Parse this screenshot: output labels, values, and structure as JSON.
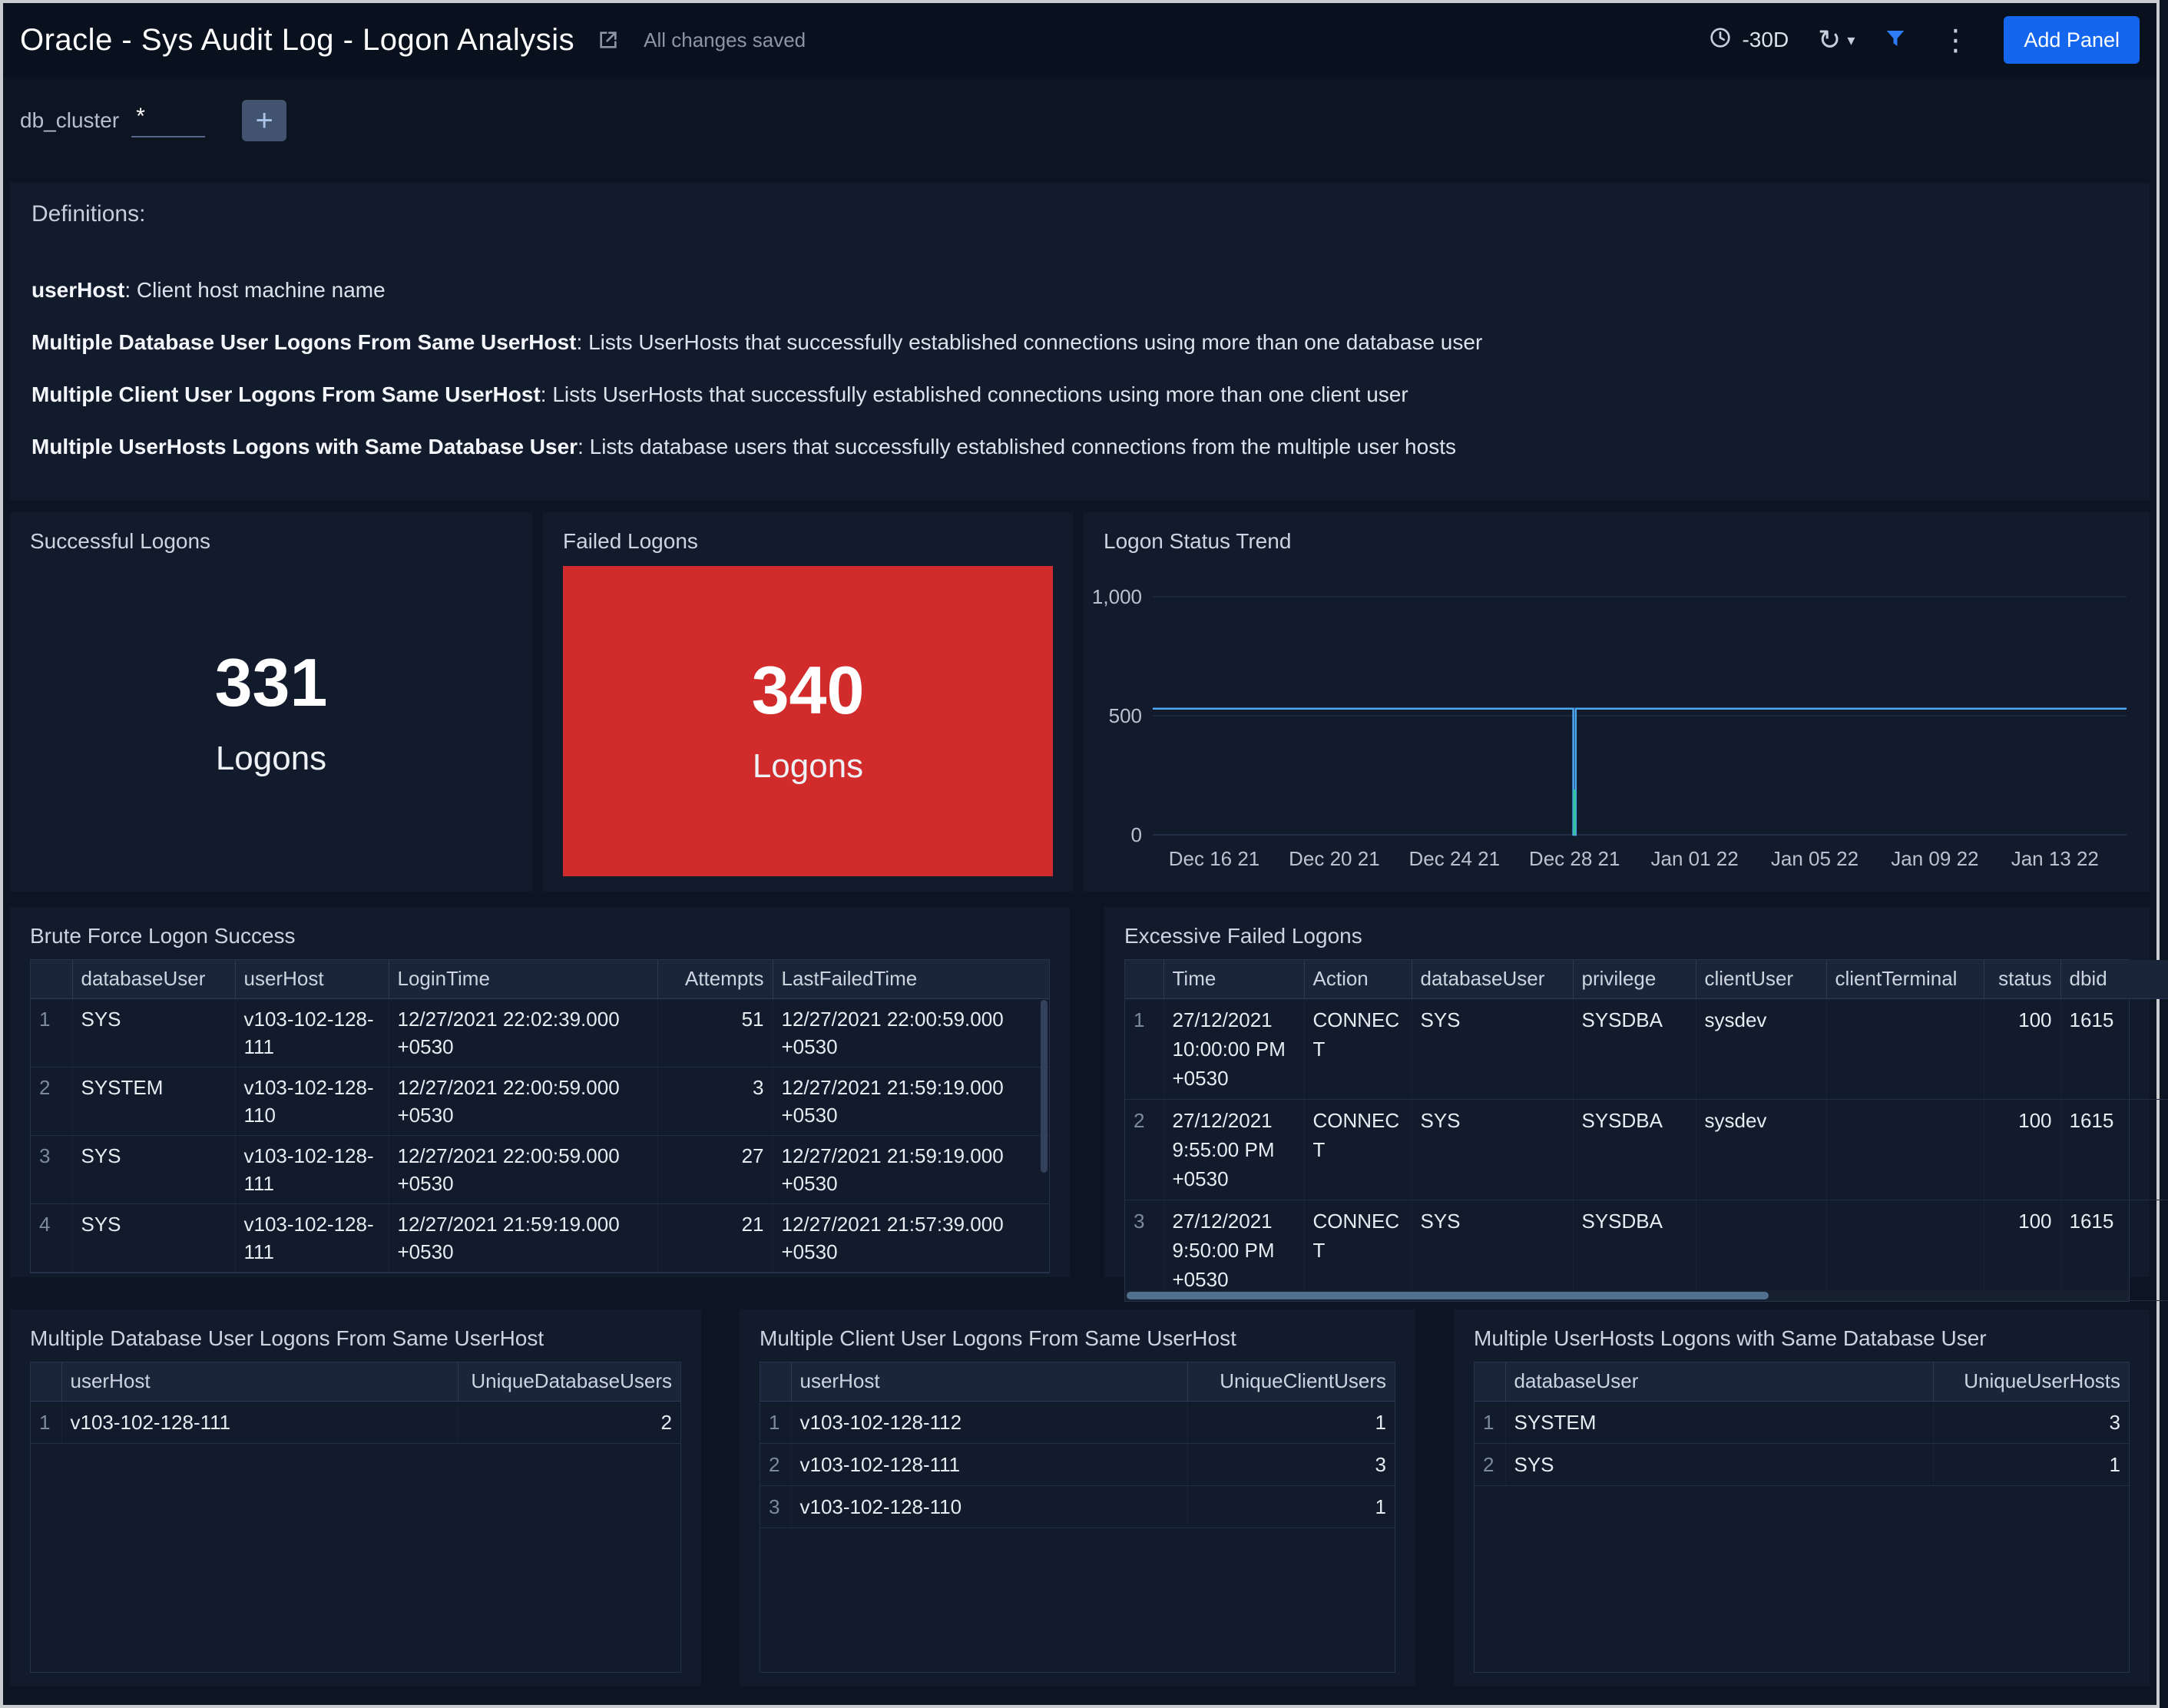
{
  "header": {
    "title": "Oracle - Sys Audit Log - Logon Analysis",
    "saved_status": "All changes saved",
    "time_range": "-30D",
    "add_panel_label": "Add Panel"
  },
  "icons": {
    "refresh": "↻",
    "caret": "▾",
    "kebab": "⋮",
    "plus": "+"
  },
  "filter": {
    "label": "db_cluster",
    "value": "*"
  },
  "definitions": {
    "title": "Definitions:",
    "items": [
      {
        "term": "userHost",
        "desc": ": Client host machine name"
      },
      {
        "term": "Multiple Database User Logons From Same UserHost",
        "desc": ": Lists UserHosts that successfully established connections using more than one database user"
      },
      {
        "term": "Multiple Client User Logons From Same UserHost",
        "desc": ": Lists UserHosts that successfully established connections using more than one client user"
      },
      {
        "term": "Multiple UserHosts Logons with Same Database User",
        "desc": ": Lists database users that successfully established connections from the multiple user hosts"
      }
    ]
  },
  "stats": {
    "successful": {
      "title": "Successful Logons",
      "value": "331",
      "unit": "Logons"
    },
    "failed": {
      "title": "Failed Logons",
      "value": "340",
      "unit": "Logons"
    }
  },
  "chart_data": {
    "type": "line",
    "title": "Logon Status Trend",
    "x_labels": [
      "Dec 16 21",
      "Dec 20 21",
      "Dec 24 21",
      "Dec 28 21",
      "Jan 01 22",
      "Jan 05 22",
      "Jan 09 22",
      "Jan 13 22"
    ],
    "ylim": [
      0,
      1000
    ],
    "yticks": [
      0,
      500,
      1000
    ],
    "ytick_labels": [
      "0",
      "500",
      "1,000"
    ],
    "grid": "horizontal",
    "legend": "none",
    "series": [
      {
        "name": "Failed Logons",
        "color": "#4da7f3",
        "width": 2.5,
        "points": [
          [
            -0.6,
            530
          ],
          [
            2.99,
            530
          ],
          [
            2.99,
            0
          ],
          [
            3.01,
            0
          ],
          [
            3.01,
            530
          ],
          [
            7.6,
            530
          ]
        ]
      },
      {
        "name": "Successful Logons",
        "color": "#2fc492",
        "width": 3,
        "points": [
          [
            3,
            190
          ],
          [
            3,
            0
          ]
        ]
      }
    ]
  },
  "tables": {
    "brute_force": {
      "title": "Brute Force Logon Success",
      "columns": [
        "",
        "databaseUser",
        "userHost",
        "LoginTime",
        "Attempts",
        "LastFailedTime"
      ],
      "rows": [
        [
          "1",
          "SYS",
          "v103-102-128-111",
          "12/27/2021 22:02:39.000 +0530",
          "51",
          "12/27/2021 22:00:59.000 +0530"
        ],
        [
          "2",
          "SYSTEM",
          "v103-102-128-110",
          "12/27/2021 22:00:59.000 +0530",
          "3",
          "12/27/2021 21:59:19.000 +0530"
        ],
        [
          "3",
          "SYS",
          "v103-102-128-111",
          "12/27/2021 22:00:59.000 +0530",
          "27",
          "12/27/2021 21:59:19.000 +0530"
        ],
        [
          "4",
          "SYS",
          "v103-102-128-111",
          "12/27/2021 21:59:19.000 +0530",
          "21",
          "12/27/2021 21:57:39.000 +0530"
        ]
      ]
    },
    "excessive_failed": {
      "title": "Excessive Failed Logons",
      "columns": [
        "",
        "Time",
        "Action",
        "databaseUser",
        "privilege",
        "clientUser",
        "clientTerminal",
        "status",
        "dbid"
      ],
      "rows": [
        [
          "1",
          "27/12/2021 10:00:00 PM +0530",
          "CONNECT",
          "SYS",
          "SYSDBA",
          "sysdev",
          "",
          "100",
          "1615"
        ],
        [
          "2",
          "27/12/2021 9:55:00 PM +0530",
          "CONNECT",
          "SYS",
          "SYSDBA",
          "sysdev",
          "",
          "100",
          "1615"
        ],
        [
          "3",
          "27/12/2021 9:50:00 PM +0530",
          "CONNECT",
          "SYS",
          "SYSDBA",
          "",
          "",
          "100",
          "1615"
        ]
      ]
    },
    "multi_db_user": {
      "title": "Multiple Database User Logons From Same UserHost",
      "columns": [
        "",
        "userHost",
        "UniqueDatabaseUsers"
      ],
      "rows": [
        [
          "1",
          "v103-102-128-111",
          "2"
        ]
      ]
    },
    "multi_client_user": {
      "title": "Multiple Client User Logons From Same UserHost",
      "columns": [
        "",
        "userHost",
        "UniqueClientUsers"
      ],
      "rows": [
        [
          "1",
          "v103-102-128-112",
          "1"
        ],
        [
          "2",
          "v103-102-128-111",
          "3"
        ],
        [
          "3",
          "v103-102-128-110",
          "1"
        ]
      ]
    },
    "multi_userhosts": {
      "title": "Multiple UserHosts Logons with Same Database User",
      "columns": [
        "",
        "databaseUser",
        "UniqueUserHosts"
      ],
      "rows": [
        [
          "1",
          "SYSTEM",
          "3"
        ],
        [
          "2",
          "SYS",
          "1"
        ]
      ]
    }
  },
  "colors": {
    "accent_blue": "#1566ef",
    "failed_red": "#d12b2b",
    "trend_blue": "#4da7f3",
    "trend_green": "#2fc492",
    "filter_icon_blue": "#2f7df6"
  }
}
